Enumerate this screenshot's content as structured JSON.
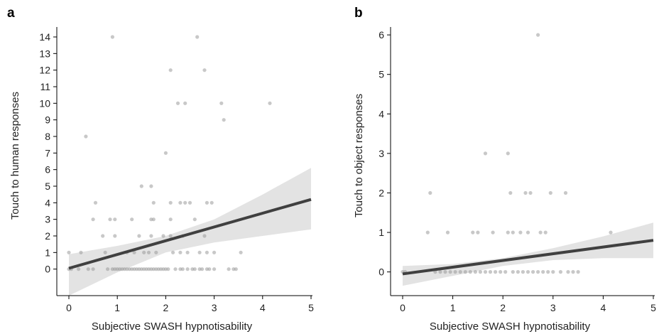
{
  "chart_data": [
    {
      "panel": "a",
      "type": "scatter",
      "xlabel": "Subjective SWASH hypnotisability",
      "ylabel": "Touch to human responses",
      "xlim": [
        0,
        5
      ],
      "ylim": [
        -1.6,
        14.6
      ],
      "x_ticks": [
        0,
        1,
        2,
        3,
        4,
        5
      ],
      "y_ticks": [
        0,
        1,
        2,
        3,
        4,
        5,
        6,
        7,
        8,
        9,
        10,
        11,
        12,
        13,
        14
      ],
      "points": [
        [
          0.9,
          14
        ],
        [
          2.65,
          14
        ],
        [
          2.8,
          12
        ],
        [
          2.1,
          12
        ],
        [
          2.25,
          10
        ],
        [
          2.4,
          10
        ],
        [
          3.15,
          10
        ],
        [
          4.15,
          10
        ],
        [
          3.2,
          9
        ],
        [
          0.35,
          8
        ],
        [
          2.0,
          7
        ],
        [
          1.5,
          5
        ],
        [
          1.7,
          5
        ],
        [
          0.55,
          4
        ],
        [
          1.75,
          4
        ],
        [
          2.1,
          4
        ],
        [
          2.3,
          4
        ],
        [
          2.4,
          4
        ],
        [
          2.5,
          4
        ],
        [
          2.85,
          4
        ],
        [
          2.95,
          4
        ],
        [
          0.5,
          3
        ],
        [
          0.85,
          3
        ],
        [
          0.95,
          3
        ],
        [
          1.3,
          3
        ],
        [
          1.7,
          3
        ],
        [
          1.75,
          3
        ],
        [
          2.1,
          3
        ],
        [
          2.6,
          3
        ],
        [
          0.7,
          2
        ],
        [
          0.95,
          2
        ],
        [
          1.45,
          2
        ],
        [
          1.7,
          2
        ],
        [
          1.95,
          2
        ],
        [
          2.1,
          2
        ],
        [
          2.35,
          2
        ],
        [
          2.8,
          2
        ],
        [
          0.0,
          1
        ],
        [
          0.25,
          1
        ],
        [
          0.75,
          1
        ],
        [
          1.2,
          1
        ],
        [
          1.35,
          1
        ],
        [
          1.55,
          1
        ],
        [
          1.65,
          1
        ],
        [
          1.8,
          1
        ],
        [
          2.15,
          1
        ],
        [
          2.3,
          1
        ],
        [
          2.45,
          1
        ],
        [
          2.7,
          1
        ],
        [
          2.85,
          1
        ],
        [
          3.0,
          1
        ],
        [
          3.55,
          1
        ],
        [
          0.0,
          0
        ],
        [
          0.05,
          0
        ],
        [
          0.2,
          0
        ],
        [
          0.4,
          0
        ],
        [
          0.5,
          0
        ],
        [
          0.8,
          0
        ],
        [
          0.9,
          0
        ],
        [
          0.95,
          0
        ],
        [
          1.0,
          0
        ],
        [
          1.05,
          0
        ],
        [
          1.1,
          0
        ],
        [
          1.15,
          0
        ],
        [
          1.2,
          0
        ],
        [
          1.25,
          0
        ],
        [
          1.3,
          0
        ],
        [
          1.35,
          0
        ],
        [
          1.4,
          0
        ],
        [
          1.45,
          0
        ],
        [
          1.5,
          0
        ],
        [
          1.55,
          0
        ],
        [
          1.6,
          0
        ],
        [
          1.65,
          0
        ],
        [
          1.7,
          0
        ],
        [
          1.75,
          0
        ],
        [
          1.8,
          0
        ],
        [
          1.85,
          0
        ],
        [
          1.9,
          0
        ],
        [
          1.95,
          0
        ],
        [
          2.0,
          0
        ],
        [
          2.05,
          0
        ],
        [
          2.2,
          0
        ],
        [
          2.3,
          0
        ],
        [
          2.35,
          0
        ],
        [
          2.45,
          0
        ],
        [
          2.55,
          0
        ],
        [
          2.6,
          0
        ],
        [
          2.7,
          0
        ],
        [
          2.75,
          0
        ],
        [
          2.85,
          0
        ],
        [
          2.9,
          0
        ],
        [
          3.0,
          0
        ],
        [
          3.3,
          0
        ],
        [
          3.4,
          0
        ],
        [
          3.45,
          0
        ]
      ],
      "fit": {
        "x": [
          0,
          5
        ],
        "y": [
          0.05,
          4.2
        ]
      },
      "ci_band": {
        "x": [
          0,
          1,
          2,
          3,
          4,
          5
        ],
        "lower": [
          -1.6,
          -0.2,
          1.0,
          1.6,
          2.0,
          2.4
        ],
        "upper": [
          0.9,
          1.4,
          2.0,
          3.0,
          4.5,
          6.1
        ]
      }
    },
    {
      "panel": "b",
      "type": "scatter",
      "xlabel": "Subjective SWASH hypnotisability",
      "ylabel": "Touch to object responses",
      "xlim": [
        0,
        5
      ],
      "ylim": [
        -0.6,
        6.2
      ],
      "x_ticks": [
        0,
        1,
        2,
        3,
        4,
        5
      ],
      "y_ticks": [
        0,
        1,
        2,
        3,
        4,
        5,
        6
      ],
      "points": [
        [
          2.7,
          6
        ],
        [
          1.65,
          3
        ],
        [
          2.1,
          3
        ],
        [
          0.55,
          2
        ],
        [
          2.15,
          2
        ],
        [
          2.45,
          2
        ],
        [
          2.55,
          2
        ],
        [
          2.95,
          2
        ],
        [
          3.25,
          2
        ],
        [
          0.5,
          1
        ],
        [
          0.9,
          1
        ],
        [
          1.4,
          1
        ],
        [
          1.5,
          1
        ],
        [
          1.8,
          1
        ],
        [
          2.1,
          1
        ],
        [
          2.2,
          1
        ],
        [
          2.35,
          1
        ],
        [
          2.5,
          1
        ],
        [
          2.75,
          1
        ],
        [
          2.85,
          1
        ],
        [
          4.15,
          1
        ],
        [
          0.0,
          0
        ],
        [
          0.05,
          0
        ],
        [
          0.65,
          0
        ],
        [
          0.75,
          0
        ],
        [
          0.85,
          0
        ],
        [
          0.95,
          0
        ],
        [
          1.05,
          0
        ],
        [
          1.15,
          0
        ],
        [
          1.25,
          0
        ],
        [
          1.35,
          0
        ],
        [
          1.45,
          0
        ],
        [
          1.55,
          0
        ],
        [
          1.65,
          0
        ],
        [
          1.75,
          0
        ],
        [
          1.85,
          0
        ],
        [
          1.95,
          0
        ],
        [
          2.05,
          0
        ],
        [
          2.2,
          0
        ],
        [
          2.3,
          0
        ],
        [
          2.4,
          0
        ],
        [
          2.5,
          0
        ],
        [
          2.6,
          0
        ],
        [
          2.7,
          0
        ],
        [
          2.8,
          0
        ],
        [
          2.9,
          0
        ],
        [
          3.0,
          0
        ],
        [
          3.15,
          0
        ],
        [
          3.3,
          0
        ],
        [
          3.4,
          0
        ],
        [
          3.5,
          0
        ]
      ],
      "fit": {
        "x": [
          0,
          5
        ],
        "y": [
          -0.05,
          0.8
        ]
      },
      "ci_band": {
        "x": [
          0,
          1,
          2,
          3,
          4,
          5
        ],
        "lower": [
          -0.35,
          -0.1,
          0.15,
          0.3,
          0.35,
          0.35
        ],
        "upper": [
          0.15,
          0.2,
          0.35,
          0.6,
          0.9,
          1.25
        ]
      }
    }
  ],
  "panels": [
    {
      "letter": "a"
    },
    {
      "letter": "b"
    }
  ],
  "colors": {
    "point": "#9a9a9a",
    "fit_line": "#404040",
    "ci_band": "#e3e3e3"
  }
}
